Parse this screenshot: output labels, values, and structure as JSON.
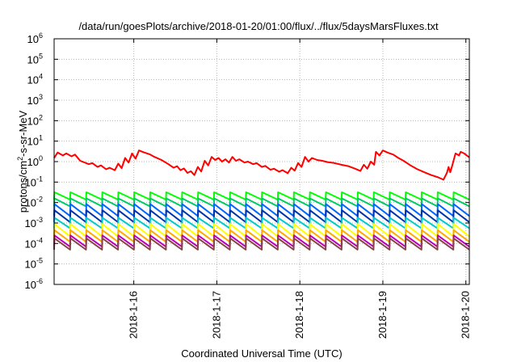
{
  "chart_data": {
    "type": "line",
    "title": "/data/run/goesPlots/archive/2018-01-20/01:00/flux/../flux/5daysMarsFluxes.txt",
    "xlabel": "Coordinated Universal Time (UTC)",
    "ylabel": {
      "base": "protons/cm",
      "sup": "2",
      "rest": "-s-sr-MeV"
    },
    "x_range": [
      "2018-01-15T00:58",
      "2018-01-20T01:00"
    ],
    "ylim": [
      1e-06,
      1000000.0
    ],
    "y_scale": "log",
    "grid": true,
    "x_ticks": [
      {
        "label": "2018-1-16",
        "x": "2018-01-16T00:00"
      },
      {
        "label": "2018-1-17",
        "x": "2018-01-17T00:00"
      },
      {
        "label": "2018-1-18",
        "x": "2018-01-18T00:00"
      },
      {
        "label": "2018-1-19",
        "x": "2018-01-19T00:00"
      },
      {
        "label": "2018-1-20",
        "x": "2018-01-20T00:00"
      }
    ],
    "y_ticks": [
      {
        "base": "10",
        "exp": "-6",
        "value": 1e-06
      },
      {
        "base": "10",
        "exp": "-5",
        "value": 1e-05
      },
      {
        "base": "10",
        "exp": "-4",
        "value": 0.0001
      },
      {
        "base": "10",
        "exp": "-3",
        "value": 0.001
      },
      {
        "base": "10",
        "exp": "-2",
        "value": 0.01
      },
      {
        "base": "10",
        "exp": "-1",
        "value": 0.1
      },
      {
        "base": "10",
        "exp": "0",
        "value": 1.0
      },
      {
        "base": "10",
        "exp": "1",
        "value": 10.0
      },
      {
        "base": "10",
        "exp": "2",
        "value": 100.0
      },
      {
        "base": "10",
        "exp": "3",
        "value": 1000.0
      },
      {
        "base": "10",
        "exp": "4",
        "value": 10000.0
      },
      {
        "base": "10",
        "exp": "5",
        "value": 100000.0
      },
      {
        "base": "10",
        "exp": "6",
        "value": 1000000.0
      }
    ],
    "series": [
      {
        "color": "#ff0000",
        "kind": "points",
        "points": [
          [
            "2018-01-15T00:58",
            1.5
          ],
          [
            "2018-01-15T02:00",
            2.8
          ],
          [
            "2018-01-15T03:30",
            2.0
          ],
          [
            "2018-01-15T04:30",
            2.5
          ],
          [
            "2018-01-15T06:00",
            1.8
          ],
          [
            "2018-01-15T07:00",
            2.2
          ],
          [
            "2018-01-15T08:30",
            1.1
          ],
          [
            "2018-01-15T11:00",
            0.75
          ],
          [
            "2018-01-15T12:00",
            0.85
          ],
          [
            "2018-01-15T13:30",
            0.55
          ],
          [
            "2018-01-15T14:30",
            0.65
          ],
          [
            "2018-01-15T16:00",
            0.42
          ],
          [
            "2018-01-15T17:00",
            0.5
          ],
          [
            "2018-01-15T18:30",
            0.38
          ],
          [
            "2018-01-15T19:30",
            0.8
          ],
          [
            "2018-01-15T20:30",
            0.48
          ],
          [
            "2018-01-15T21:30",
            1.5
          ],
          [
            "2018-01-15T22:30",
            0.9
          ],
          [
            "2018-01-15T23:30",
            2.5
          ],
          [
            "2018-01-16T00:30",
            1.4
          ],
          [
            "2018-01-16T01:30",
            3.5
          ],
          [
            "2018-01-16T03:00",
            2.8
          ],
          [
            "2018-01-16T04:30",
            2.3
          ],
          [
            "2018-01-16T06:00",
            1.7
          ],
          [
            "2018-01-16T08:00",
            1.2
          ],
          [
            "2018-01-16T10:00",
            0.75
          ],
          [
            "2018-01-16T11:30",
            0.5
          ],
          [
            "2018-01-16T12:30",
            0.6
          ],
          [
            "2018-01-16T13:30",
            0.38
          ],
          [
            "2018-01-16T14:30",
            0.46
          ],
          [
            "2018-01-16T15:30",
            0.28
          ],
          [
            "2018-01-16T16:30",
            0.34
          ],
          [
            "2018-01-16T17:30",
            0.22
          ],
          [
            "2018-01-16T18:30",
            0.55
          ],
          [
            "2018-01-16T19:30",
            0.33
          ],
          [
            "2018-01-16T20:30",
            1.1
          ],
          [
            "2018-01-16T21:30",
            0.65
          ],
          [
            "2018-01-16T22:30",
            1.7
          ],
          [
            "2018-01-16T23:30",
            1.2
          ],
          [
            "2018-01-17T00:30",
            1.5
          ],
          [
            "2018-01-17T01:30",
            1.0
          ],
          [
            "2018-01-17T02:30",
            1.3
          ],
          [
            "2018-01-17T03:30",
            0.9
          ],
          [
            "2018-01-17T04:30",
            1.7
          ],
          [
            "2018-01-17T05:30",
            1.1
          ],
          [
            "2018-01-17T06:30",
            1.3
          ],
          [
            "2018-01-17T08:00",
            0.9
          ],
          [
            "2018-01-17T09:00",
            1.0
          ],
          [
            "2018-01-17T10:30",
            0.75
          ],
          [
            "2018-01-17T11:30",
            0.85
          ],
          [
            "2018-01-17T13:00",
            0.55
          ],
          [
            "2018-01-17T14:00",
            0.62
          ],
          [
            "2018-01-17T15:30",
            0.4
          ],
          [
            "2018-01-17T16:30",
            0.45
          ],
          [
            "2018-01-17T18:00",
            0.32
          ],
          [
            "2018-01-17T19:00",
            0.38
          ],
          [
            "2018-01-17T20:30",
            0.27
          ],
          [
            "2018-01-17T21:30",
            0.5
          ],
          [
            "2018-01-17T22:30",
            0.36
          ],
          [
            "2018-01-17T23:30",
            0.85
          ],
          [
            "2018-01-18T00:30",
            0.55
          ],
          [
            "2018-01-18T01:30",
            1.7
          ],
          [
            "2018-01-18T02:30",
            1.0
          ],
          [
            "2018-01-18T03:30",
            1.5
          ],
          [
            "2018-01-18T05:00",
            1.2
          ],
          [
            "2018-01-18T06:30",
            1.1
          ],
          [
            "2018-01-18T08:00",
            0.95
          ],
          [
            "2018-01-18T10:00",
            0.85
          ],
          [
            "2018-01-18T12:00",
            0.7
          ],
          [
            "2018-01-18T14:00",
            0.6
          ],
          [
            "2018-01-18T16:00",
            0.45
          ],
          [
            "2018-01-18T17:30",
            0.35
          ],
          [
            "2018-01-18T18:30",
            0.7
          ],
          [
            "2018-01-18T19:30",
            0.45
          ],
          [
            "2018-01-18T20:30",
            1.0
          ],
          [
            "2018-01-18T21:30",
            0.7
          ],
          [
            "2018-01-18T22:00",
            3.0
          ],
          [
            "2018-01-18T23:00",
            2.0
          ],
          [
            "2018-01-19T00:00",
            3.5
          ],
          [
            "2018-01-19T01:30",
            2.7
          ],
          [
            "2018-01-19T03:00",
            2.2
          ],
          [
            "2018-01-19T04:30",
            1.5
          ],
          [
            "2018-01-19T06:00",
            1.1
          ],
          [
            "2018-01-19T08:00",
            0.65
          ],
          [
            "2018-01-19T10:00",
            0.42
          ],
          [
            "2018-01-19T12:00",
            0.3
          ],
          [
            "2018-01-19T14:00",
            0.22
          ],
          [
            "2018-01-19T16:00",
            0.17
          ],
          [
            "2018-01-19T17:30",
            0.13
          ],
          [
            "2018-01-19T18:30",
            0.28
          ],
          [
            "2018-01-19T19:00",
            0.55
          ],
          [
            "2018-01-19T19:30",
            0.3
          ],
          [
            "2018-01-19T20:00",
            0.6
          ],
          [
            "2018-01-19T21:00",
            2.5
          ],
          [
            "2018-01-19T22:00",
            2.0
          ],
          [
            "2018-01-19T22:30",
            3.0
          ],
          [
            "2018-01-19T23:30",
            2.5
          ],
          [
            "2018-01-20T01:00",
            1.6
          ]
        ]
      },
      {
        "color": "#00ff00",
        "kind": "sawtooth",
        "high": 0.032,
        "low": 0.014,
        "teeth": 26
      },
      {
        "color": "#00cc66",
        "kind": "sawtooth",
        "high": 0.016,
        "low": 0.0065,
        "teeth": 26
      },
      {
        "color": "#0066ff",
        "kind": "sawtooth",
        "high": 0.0085,
        "low": 0.0022,
        "teeth": 26
      },
      {
        "color": "#0033aa",
        "kind": "sawtooth",
        "high": 0.0042,
        "low": 0.0011,
        "teeth": 26
      },
      {
        "color": "#00cccc",
        "kind": "sawtooth",
        "high": 0.0018,
        "low": 0.00055,
        "teeth": 26
      },
      {
        "color": "#ffff00",
        "kind": "sawtooth",
        "high": 0.0009,
        "low": 0.00022,
        "teeth": 26
      },
      {
        "color": "#ffaa00",
        "kind": "sawtooth",
        "high": 0.00045,
        "low": 0.00012,
        "teeth": 26
      },
      {
        "color": "#bb00bb",
        "kind": "sawtooth",
        "high": 0.00025,
        "low": 7e-05,
        "teeth": 26
      },
      {
        "color": "#884444",
        "kind": "sawtooth",
        "high": 0.00018,
        "low": 5e-05,
        "teeth": 26
      }
    ]
  }
}
